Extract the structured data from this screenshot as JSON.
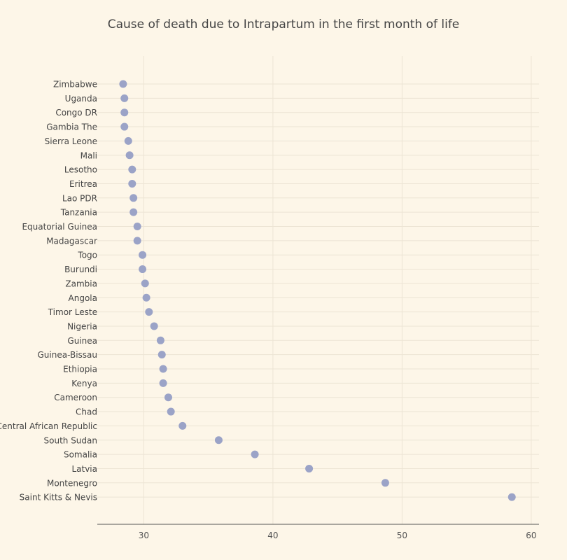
{
  "chart_data": {
    "type": "scatter",
    "title": "Cause of death due to Intrapartum in the first month of life",
    "xlabel": "",
    "ylabel": "",
    "xlim": [
      26.4,
      60.6
    ],
    "xticks": [
      30,
      40,
      50,
      60
    ],
    "grid": true,
    "marker_color": "#9ba3c7",
    "categories": [
      "Zimbabwe",
      "Uganda",
      "Congo DR",
      "Gambia The",
      "Sierra Leone",
      "Mali",
      "Lesotho",
      "Eritrea",
      "Lao PDR",
      "Tanzania",
      "Equatorial Guinea",
      "Madagascar",
      "Togo",
      "Burundi",
      "Zambia",
      "Angola",
      "Timor Leste",
      "Nigeria",
      "Guinea",
      "Guinea-Bissau",
      "Ethiopia",
      "Kenya",
      "Cameroon",
      "Chad",
      "Central African Republic",
      "South Sudan",
      "Somalia",
      "Latvia",
      "Montenegro",
      "Saint Kitts & Nevis"
    ],
    "values": [
      28.4,
      28.5,
      28.5,
      28.5,
      28.8,
      28.9,
      29.1,
      29.1,
      29.2,
      29.2,
      29.5,
      29.5,
      29.9,
      29.9,
      30.1,
      30.2,
      30.4,
      30.8,
      31.3,
      31.4,
      31.5,
      31.5,
      31.9,
      32.1,
      33.0,
      35.8,
      38.6,
      42.8,
      48.7,
      58.5
    ]
  }
}
